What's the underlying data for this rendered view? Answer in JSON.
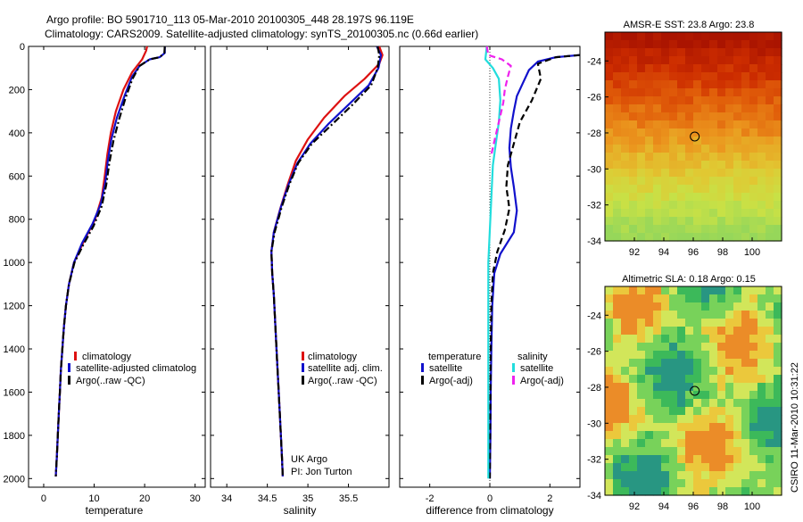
{
  "header": {
    "title_line1": "Argo profile: BO 5901710_113 05-Mar-2010 20100305_448 28.197S 96.119E",
    "title_line2": "Climatology: CARS2009. Satellite-adjusted climatology: synTS_20100305.nc (0.66d earlier)"
  },
  "credits": {
    "program": "UK Argo",
    "pi": "PI: Jon Turton",
    "stamp": "CSIRO 11-Mar-2010 10:31:22"
  },
  "colors": {
    "climatology": "#dd1111",
    "satellite": "#1111cc",
    "argo": "#000000",
    "satellite_salinity": "#22dddd",
    "argo_salinity": "#ee22ee"
  },
  "chart_data": [
    {
      "type": "line",
      "title": "",
      "xlabel": "temperature",
      "ylabel": "",
      "xlim": [
        -3,
        32
      ],
      "ylim": [
        2040,
        0
      ],
      "y_ticks": [
        0,
        200,
        400,
        600,
        800,
        1000,
        1200,
        1400,
        1600,
        1800,
        2000
      ],
      "x_ticks": [
        0,
        10,
        20,
        30
      ],
      "legend": {
        "placement": "lower-right",
        "entries": [
          "climatology",
          "satellite-adjusted climatolog",
          "Argo(..raw -QC)"
        ]
      },
      "series": [
        {
          "name": "climatology",
          "style": "solid",
          "color": "#dd1111",
          "points": [
            [
              20.5,
              0
            ],
            [
              20.3,
              20
            ],
            [
              19.5,
              60
            ],
            [
              17.5,
              120
            ],
            [
              15.8,
              200
            ],
            [
              14.3,
              300
            ],
            [
              13.3,
              400
            ],
            [
              12.6,
              500
            ],
            [
              12.1,
              600
            ],
            [
              11.5,
              700
            ],
            [
              10.2,
              800
            ],
            [
              8.0,
              900
            ],
            [
              6.0,
              1000
            ],
            [
              5.0,
              1100
            ],
            [
              4.4,
              1200
            ],
            [
              4.0,
              1300
            ],
            [
              3.7,
              1400
            ],
            [
              3.4,
              1500
            ],
            [
              3.2,
              1600
            ],
            [
              3.0,
              1700
            ],
            [
              2.8,
              1800
            ],
            [
              2.6,
              1900
            ],
            [
              2.4,
              1990
            ]
          ]
        },
        {
          "name": "satellite-adjusted climatolog",
          "style": "solid",
          "color": "#1111cc",
          "points": [
            [
              24.0,
              0
            ],
            [
              24.0,
              30
            ],
            [
              23.0,
              50
            ],
            [
              21.0,
              60
            ],
            [
              19.0,
              90
            ],
            [
              17.5,
              140
            ],
            [
              16.0,
              230
            ],
            [
              14.5,
              330
            ],
            [
              13.4,
              430
            ],
            [
              12.7,
              530
            ],
            [
              12.2,
              630
            ],
            [
              11.3,
              730
            ],
            [
              9.7,
              820
            ],
            [
              7.6,
              910
            ],
            [
              6.0,
              1000
            ],
            [
              5.0,
              1100
            ],
            [
              4.4,
              1200
            ],
            [
              4.0,
              1300
            ],
            [
              3.7,
              1400
            ],
            [
              3.4,
              1500
            ],
            [
              3.2,
              1600
            ],
            [
              3.0,
              1700
            ],
            [
              2.8,
              1800
            ],
            [
              2.6,
              1900
            ],
            [
              2.4,
              1990
            ]
          ]
        },
        {
          "name": "Argo(..raw -QC)",
          "style": "dashdot",
          "color": "#000000",
          "points": [
            [
              24.0,
              0
            ],
            [
              23.9,
              30
            ],
            [
              23.0,
              50
            ],
            [
              21.0,
              60
            ],
            [
              19.0,
              90
            ],
            [
              17.6,
              150
            ],
            [
              16.2,
              240
            ],
            [
              14.9,
              340
            ],
            [
              13.8,
              440
            ],
            [
              13.0,
              540
            ],
            [
              12.4,
              640
            ],
            [
              11.5,
              740
            ],
            [
              9.9,
              830
            ],
            [
              7.8,
              920
            ],
            [
              6.1,
              1000
            ],
            [
              5.0,
              1100
            ],
            [
              4.4,
              1200
            ],
            [
              4.0,
              1300
            ],
            [
              3.7,
              1400
            ],
            [
              3.4,
              1500
            ],
            [
              3.2,
              1600
            ],
            [
              3.0,
              1700
            ],
            [
              2.8,
              1800
            ],
            [
              2.6,
              1900
            ],
            [
              2.4,
              1990
            ]
          ]
        }
      ]
    },
    {
      "type": "line",
      "title": "",
      "xlabel": "salinity",
      "ylabel": "",
      "xlim": [
        33.8,
        36.0
      ],
      "ylim": [
        2040,
        0
      ],
      "x_ticks": [
        34,
        34.5,
        35,
        35.5
      ],
      "legend": {
        "placement": "lower-right",
        "entries": [
          "climatology",
          "satellite adj. clim.",
          "Argo(..raw -QC)"
        ]
      },
      "series": [
        {
          "name": "climatology",
          "style": "solid",
          "color": "#dd1111",
          "points": [
            [
              35.88,
              0
            ],
            [
              35.92,
              40
            ],
            [
              35.88,
              80
            ],
            [
              35.7,
              150
            ],
            [
              35.45,
              230
            ],
            [
              35.2,
              330
            ],
            [
              35.0,
              430
            ],
            [
              34.85,
              530
            ],
            [
              34.75,
              640
            ],
            [
              34.66,
              750
            ],
            [
              34.58,
              860
            ],
            [
              34.55,
              950
            ],
            [
              34.56,
              1050
            ],
            [
              34.58,
              1150
            ],
            [
              34.6,
              1300
            ],
            [
              34.62,
              1450
            ],
            [
              34.64,
              1600
            ],
            [
              34.66,
              1750
            ],
            [
              34.68,
              1900
            ],
            [
              34.69,
              1990
            ]
          ]
        },
        {
          "name": "satellite adj. clim.",
          "style": "solid",
          "color": "#1111cc",
          "points": [
            [
              35.85,
              0
            ],
            [
              35.9,
              40
            ],
            [
              35.87,
              100
            ],
            [
              35.75,
              180
            ],
            [
              35.5,
              270
            ],
            [
              35.25,
              360
            ],
            [
              35.03,
              450
            ],
            [
              34.87,
              540
            ],
            [
              34.76,
              640
            ],
            [
              34.67,
              740
            ],
            [
              34.58,
              860
            ],
            [
              34.55,
              950
            ],
            [
              34.56,
              1050
            ],
            [
              34.58,
              1150
            ],
            [
              34.6,
              1300
            ],
            [
              34.62,
              1450
            ],
            [
              34.64,
              1600
            ],
            [
              34.66,
              1750
            ],
            [
              34.68,
              1900
            ],
            [
              34.69,
              1990
            ]
          ]
        },
        {
          "name": "Argo(..raw -QC)",
          "style": "dashdot",
          "color": "#000000",
          "points": [
            [
              35.86,
              0
            ],
            [
              35.88,
              40
            ],
            [
              35.86,
              100
            ],
            [
              35.78,
              180
            ],
            [
              35.55,
              270
            ],
            [
              35.3,
              360
            ],
            [
              35.05,
              450
            ],
            [
              34.88,
              540
            ],
            [
              34.77,
              640
            ],
            [
              34.68,
              740
            ],
            [
              34.59,
              860
            ],
            [
              34.55,
              950
            ],
            [
              34.56,
              1050
            ],
            [
              34.58,
              1150
            ],
            [
              34.6,
              1300
            ],
            [
              34.62,
              1450
            ],
            [
              34.64,
              1600
            ],
            [
              34.66,
              1750
            ],
            [
              34.68,
              1900
            ],
            [
              34.69,
              1990
            ]
          ]
        }
      ]
    },
    {
      "type": "line",
      "title": "",
      "xlabel": "difference from climatology",
      "ylabel": "",
      "xlim": [
        -3,
        3
      ],
      "ylim": [
        2040,
        0
      ],
      "x_ticks": [
        -2,
        0,
        2
      ],
      "legend": {
        "placement": "lower-center",
        "groups": [
          "temperature",
          "salinity"
        ],
        "entries": [
          "satellite",
          "Argo(-adj)",
          "satellite",
          "Argo(-adj)"
        ]
      },
      "series": [
        {
          "name": "satellite",
          "group": "temperature",
          "style": "solid",
          "color": "#1111cc",
          "points": [
            [
              3.0,
              40
            ],
            [
              2.2,
              50
            ],
            [
              1.6,
              70
            ],
            [
              1.3,
              110
            ],
            [
              1.1,
              170
            ],
            [
              0.9,
              230
            ],
            [
              0.8,
              300
            ],
            [
              0.7,
              380
            ],
            [
              0.65,
              470
            ],
            [
              0.7,
              560
            ],
            [
              0.8,
              650
            ],
            [
              0.9,
              760
            ],
            [
              0.8,
              860
            ],
            [
              0.35,
              960
            ],
            [
              0.15,
              1050
            ],
            [
              0.08,
              1200
            ],
            [
              0.05,
              1400
            ],
            [
              0.03,
              1600
            ],
            [
              0.02,
              1800
            ],
            [
              0.0,
              2000
            ]
          ]
        },
        {
          "name": "Argo(-adj)",
          "group": "temperature",
          "style": "dashed",
          "color": "#000000",
          "points": [
            [
              3.0,
              40
            ],
            [
              2.2,
              50
            ],
            [
              1.6,
              80
            ],
            [
              1.7,
              150
            ],
            [
              1.4,
              250
            ],
            [
              1.0,
              350
            ],
            [
              0.8,
              450
            ],
            [
              0.6,
              550
            ],
            [
              0.55,
              650
            ],
            [
              0.65,
              750
            ],
            [
              0.5,
              850
            ],
            [
              0.25,
              950
            ],
            [
              0.1,
              1050
            ],
            [
              0.05,
              1200
            ],
            [
              0.03,
              1400
            ],
            [
              0.02,
              1600
            ],
            [
              0.01,
              1800
            ],
            [
              0.0,
              2000
            ]
          ]
        },
        {
          "name": "satellite",
          "group": "salinity",
          "style": "solid",
          "color": "#22dddd",
          "points": [
            [
              -0.1,
              0
            ],
            [
              -0.15,
              60
            ],
            [
              0.1,
              100
            ],
            [
              0.3,
              150
            ],
            [
              0.35,
              250
            ],
            [
              0.3,
              350
            ],
            [
              0.2,
              450
            ],
            [
              0.1,
              550
            ],
            [
              0.05,
              700
            ],
            [
              0.0,
              850
            ],
            [
              -0.05,
              1000
            ],
            [
              -0.05,
              1200
            ],
            [
              -0.05,
              1400
            ],
            [
              -0.05,
              1600
            ],
            [
              -0.05,
              1800
            ],
            [
              -0.05,
              2000
            ]
          ]
        },
        {
          "name": "Argo(-adj)",
          "group": "salinity",
          "style": "dashed",
          "color": "#ee22ee",
          "points": [
            [
              -0.1,
              0
            ],
            [
              -0.05,
              40
            ],
            [
              0.4,
              60
            ],
            [
              0.7,
              90
            ],
            [
              0.6,
              140
            ],
            [
              0.5,
              200
            ],
            [
              0.45,
              260
            ],
            [
              0.35,
              320
            ],
            [
              0.25,
              380
            ],
            [
              0.15,
              440
            ],
            [
              0.05,
              500
            ]
          ]
        }
      ]
    },
    {
      "type": "heatmap",
      "title": "AMSR-E SST: 23.8 Argo: 23.8",
      "xlabel": "",
      "ylabel": "",
      "xlim": [
        90,
        102
      ],
      "ylim": [
        -34,
        -22.4
      ],
      "x_ticks": [
        92,
        94,
        96,
        98,
        100
      ],
      "y_ticks": [
        -24,
        -26,
        -28,
        -30,
        -32,
        -34
      ],
      "marker": {
        "lon": 96.1,
        "lat": -28.2
      }
    },
    {
      "type": "heatmap",
      "title": "Altimetric SLA: 0.18 Argo: 0.15",
      "xlabel": "",
      "ylabel": "",
      "xlim": [
        90,
        102
      ],
      "ylim": [
        -34,
        -22.4
      ],
      "x_ticks": [
        92,
        94,
        96,
        98,
        100
      ],
      "y_ticks": [
        -24,
        -26,
        -28,
        -30,
        -32,
        -34
      ],
      "marker": {
        "lon": 96.1,
        "lat": -28.2
      }
    }
  ]
}
